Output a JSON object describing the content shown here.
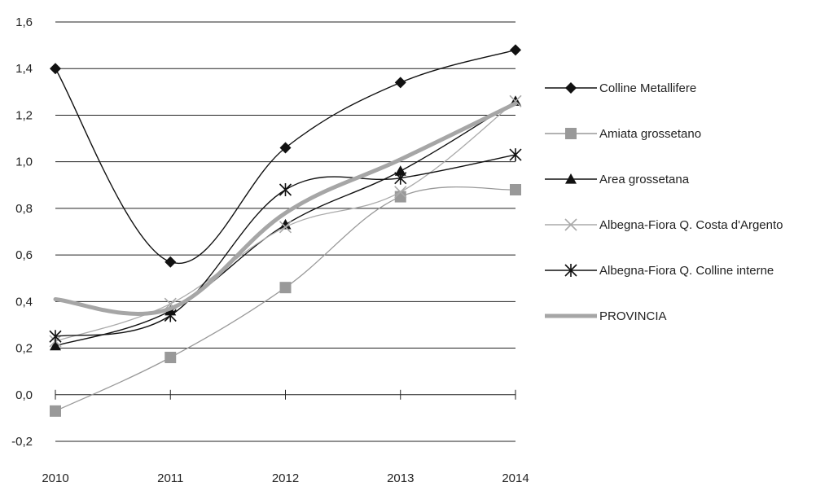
{
  "chart_data": {
    "type": "line",
    "title": "",
    "xlabel": "",
    "ylabel": "",
    "categories": [
      "2010",
      "2011",
      "2012",
      "2013",
      "2014"
    ],
    "ylim": [
      -0.2,
      1.6
    ],
    "yticks": [
      "-0,2",
      "0,0",
      "0,2",
      "0,4",
      "0,6",
      "0,8",
      "1,0",
      "1,2",
      "1,4",
      "1,6"
    ],
    "ytick_values": [
      -0.2,
      0.0,
      0.2,
      0.4,
      0.6,
      0.8,
      1.0,
      1.2,
      1.4,
      1.6
    ],
    "grid": true,
    "legend_position": "right",
    "series": [
      {
        "name": "Colline Metallifere",
        "values": [
          1.4,
          0.57,
          1.06,
          1.34,
          1.48
        ],
        "color": "#111111",
        "marker": "diamond"
      },
      {
        "name": "Amiata grossetano",
        "values": [
          -0.07,
          0.16,
          0.46,
          0.85,
          0.88
        ],
        "color": "#999999",
        "marker": "square"
      },
      {
        "name": "Area grossetana",
        "values": [
          0.21,
          0.36,
          0.73,
          0.96,
          1.26
        ],
        "color": "#111111",
        "marker": "triangle"
      },
      {
        "name": "Albegna-Fiora Q. Costa d'Argento",
        "values": [
          0.23,
          0.39,
          0.72,
          0.87,
          1.26
        ],
        "color": "#aaaaaa",
        "marker": "x"
      },
      {
        "name": "Albegna-Fiora Q. Colline interne",
        "values": [
          0.25,
          0.34,
          0.88,
          0.93,
          1.03
        ],
        "color": "#111111",
        "marker": "asterisk"
      },
      {
        "name": "PROVINCIA",
        "values": [
          0.41,
          0.37,
          0.78,
          1.01,
          1.25
        ],
        "color": "#a6a6a6",
        "marker": "none"
      }
    ]
  }
}
